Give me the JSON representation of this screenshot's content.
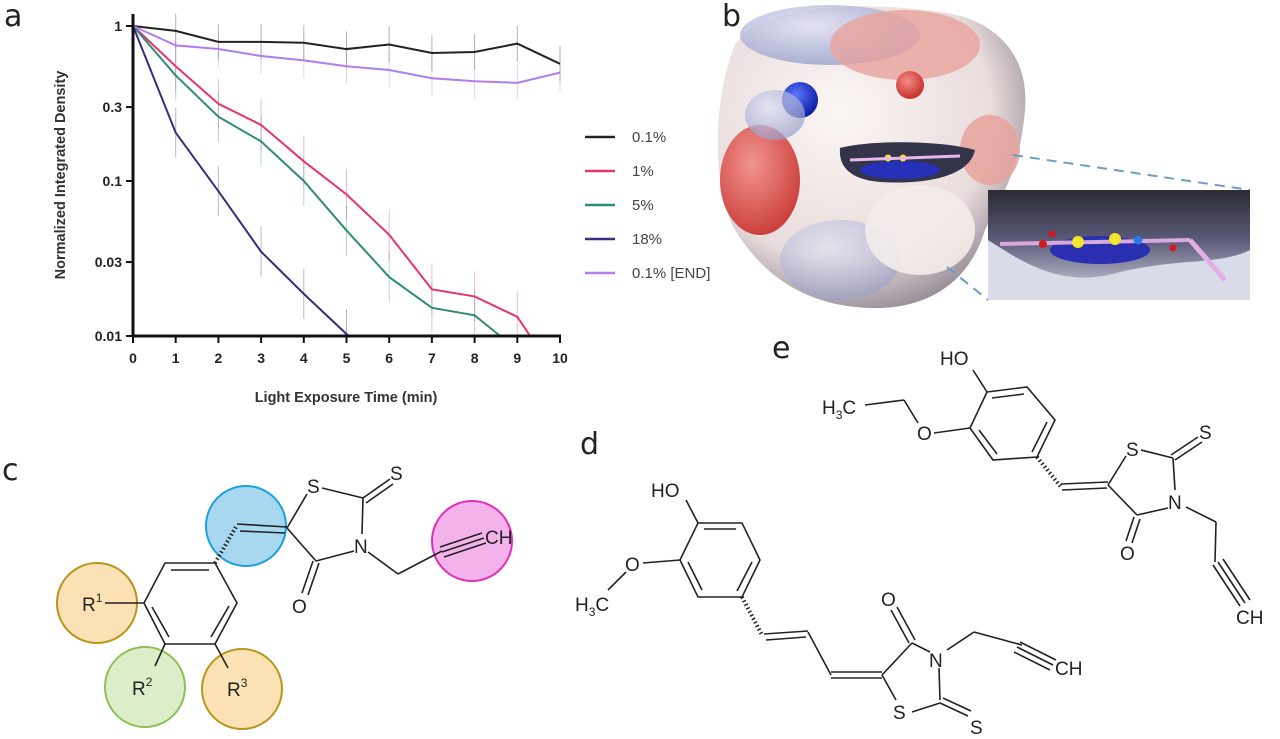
{
  "panels": {
    "a": "a",
    "b": "b",
    "c": "c",
    "d": "d",
    "e": "e"
  },
  "chart_data": {
    "type": "line",
    "title": "",
    "xlabel": "Light Exposure Time (min)",
    "ylabel": "Normalized Integrated Density",
    "xlim": [
      0,
      10
    ],
    "ylim": [
      0.01,
      1
    ],
    "yscale": "log",
    "xticks": [
      "0",
      "1",
      "2",
      "3",
      "4",
      "5",
      "6",
      "7",
      "8",
      "9",
      "10"
    ],
    "yticks": [
      {
        "value": 1,
        "label": "1"
      },
      {
        "value": 0.3,
        "label": "0.3"
      },
      {
        "value": 0.1,
        "label": "0.1"
      },
      {
        "value": 0.03,
        "label": "0.03"
      },
      {
        "value": 0.01,
        "label": "0.01"
      }
    ],
    "grid": false,
    "legend_position": "right",
    "error_bars": true,
    "series": [
      {
        "name": "0.1%",
        "color": "#222222",
        "x": [
          0,
          1,
          2,
          3,
          4,
          5,
          6,
          7,
          8,
          9,
          10
        ],
        "y": [
          1,
          0.93,
          0.79,
          0.79,
          0.78,
          0.71,
          0.76,
          0.67,
          0.68,
          0.77,
          0.57
        ]
      },
      {
        "name": "1%",
        "color": "#e8336b",
        "x": [
          0,
          1,
          2,
          3,
          4,
          5,
          6,
          7,
          8,
          9,
          9.3
        ],
        "y": [
          1,
          0.55,
          0.315,
          0.23,
          0.134,
          0.082,
          0.045,
          0.02,
          0.018,
          0.0133,
          0.01
        ]
      },
      {
        "name": "5%",
        "color": "#2e8b7a",
        "x": [
          0,
          1,
          2,
          3,
          4,
          5,
          6,
          7,
          8,
          8.6
        ],
        "y": [
          1,
          0.48,
          0.26,
          0.18,
          0.1,
          0.048,
          0.024,
          0.0152,
          0.0136,
          0.01
        ]
      },
      {
        "name": "18%",
        "color": "#3b2a7e",
        "x": [
          0,
          1,
          2,
          3,
          4,
          5,
          5.05
        ],
        "y": [
          1,
          0.205,
          0.086,
          0.035,
          0.0187,
          0.0103,
          0.01
        ]
      },
      {
        "name": "0.1% [END]",
        "color": "#b07cf0",
        "x": [
          0,
          1,
          2,
          3,
          4,
          5,
          6,
          7,
          8,
          9,
          10
        ],
        "y": [
          1,
          0.75,
          0.71,
          0.64,
          0.6,
          0.55,
          0.52,
          0.46,
          0.44,
          0.43,
          0.5
        ]
      }
    ]
  },
  "structure_c": {
    "S_ring": "S",
    "S_thione": "S",
    "N": "N",
    "O": "O",
    "CH": "CH",
    "R1": "R",
    "R1_sup": "1",
    "R2": "R",
    "R2_sup": "2",
    "R3": "R",
    "R3_sup": "3",
    "highlight_colors": {
      "linker": "#9fd3ef",
      "alkyne": "#f2a8e6",
      "R1": "#fbe0b0",
      "R2": "#d9ecc4",
      "R3": "#fbe0b0"
    }
  },
  "structure_d": {
    "HO": "HO",
    "O_methoxy": "O",
    "H3C": "H",
    "H3C_sub": "3",
    "H3C_C": "C",
    "O": "O",
    "N": "N",
    "S_ring": "S",
    "S_thione": "S",
    "CH": "CH"
  },
  "structure_e": {
    "HO": "HO",
    "O_ethoxy": "O",
    "H3C": "H",
    "H3C_sub": "3",
    "H3C_C": "C",
    "O": "O",
    "N": "N",
    "S_ring": "S",
    "S_thione": "S",
    "CH": "CH"
  }
}
